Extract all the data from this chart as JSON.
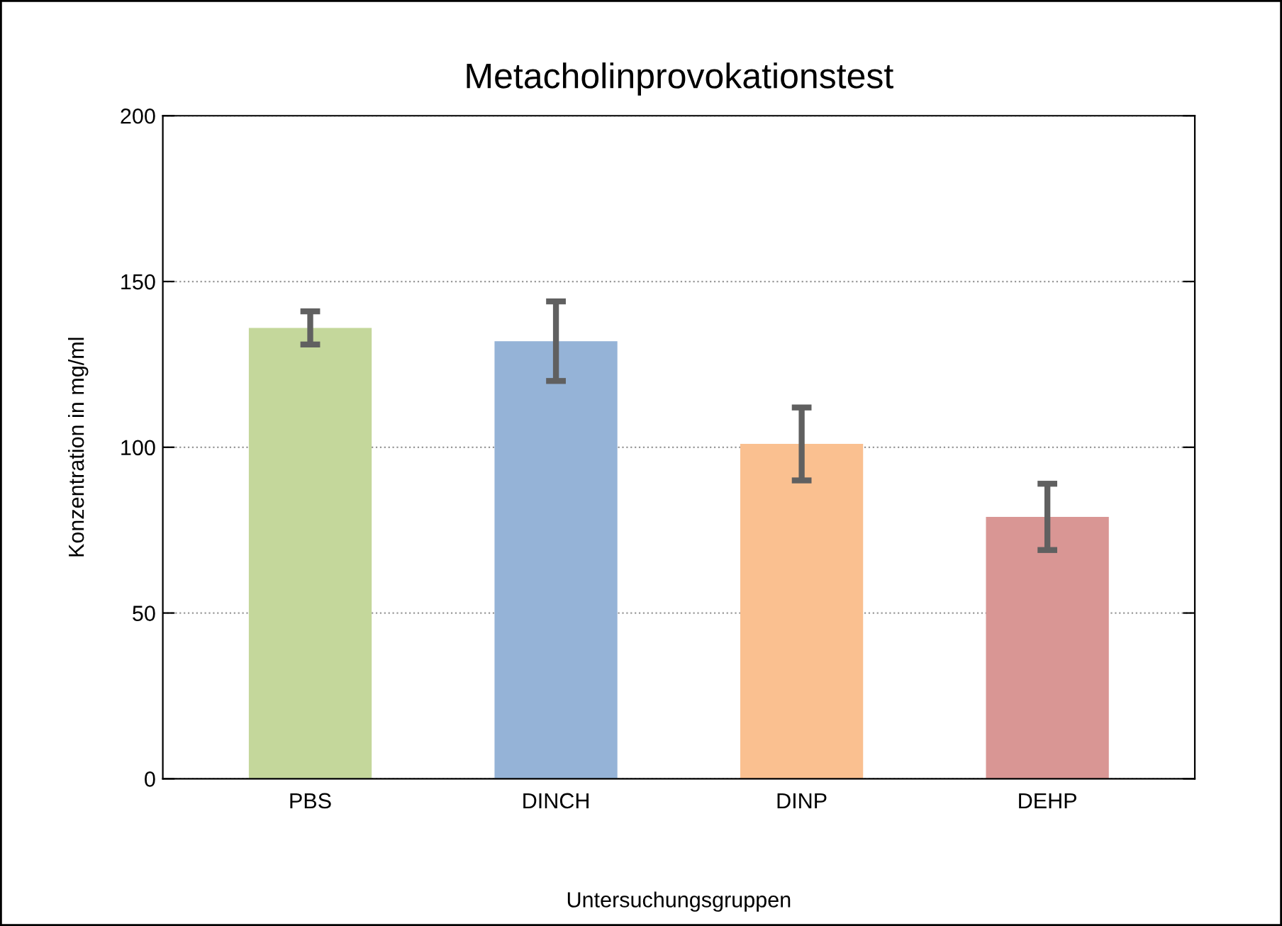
{
  "chart_data": {
    "type": "bar",
    "title": "Metacholinprovokationstest",
    "xlabel": "Untersuchungsgruppen",
    "ylabel": "Konzentration in mg/ml",
    "categories": [
      "PBS",
      "DINCH",
      "DINP",
      "DEHP"
    ],
    "values": [
      136,
      132,
      101,
      79
    ],
    "errors": [
      5,
      12,
      11,
      10
    ],
    "colors": [
      "#c4d79b",
      "#95b3d7",
      "#fac090",
      "#d99694"
    ],
    "ylim": [
      0,
      200
    ],
    "yticks": [
      0,
      50,
      100,
      150,
      200
    ],
    "grid": "y"
  }
}
